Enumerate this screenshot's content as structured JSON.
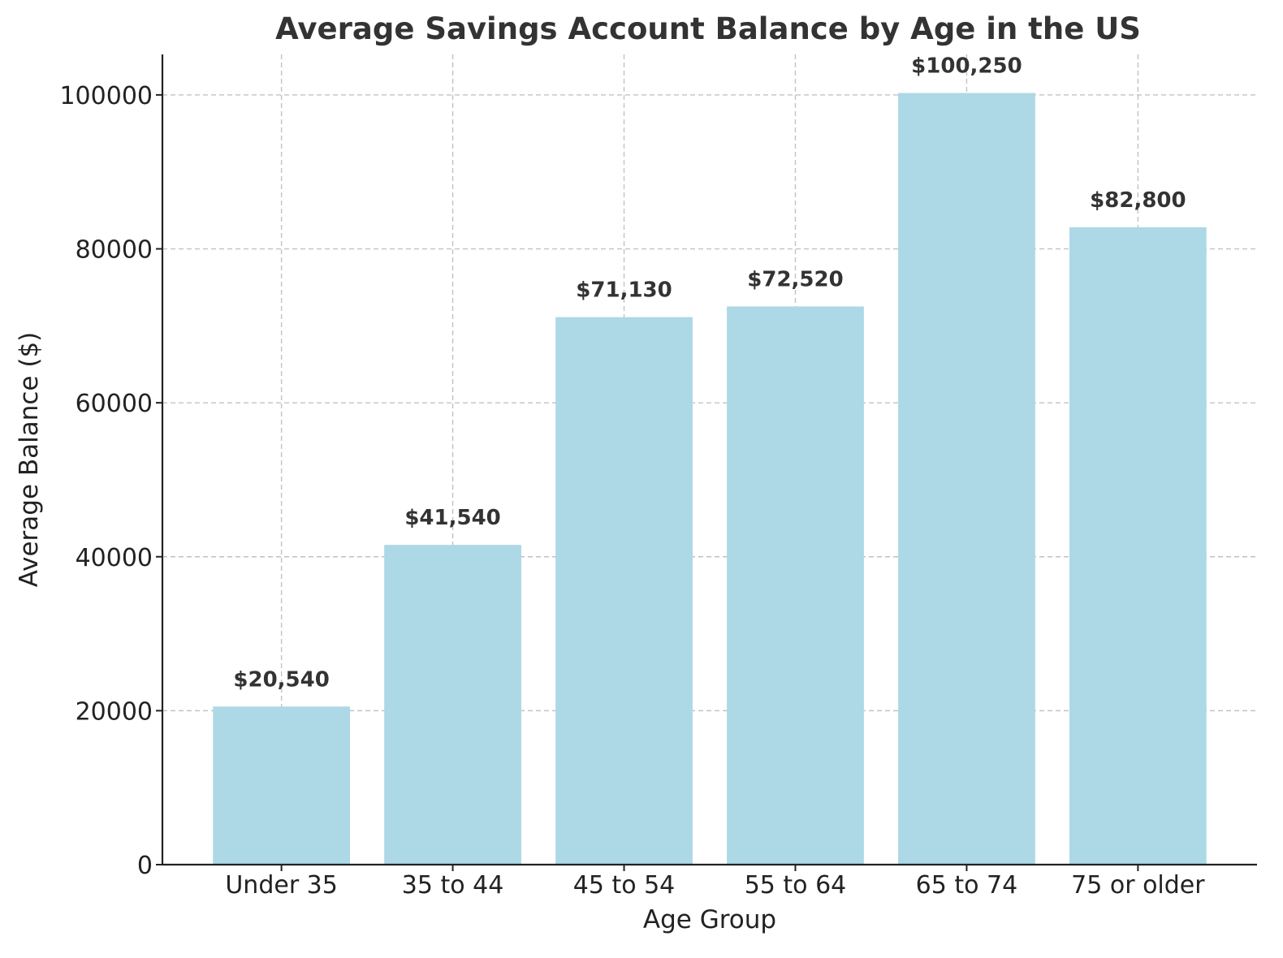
{
  "chart_data": {
    "type": "bar",
    "title": "Average Savings Account Balance by Age in the US",
    "xlabel": "Age Group",
    "ylabel": "Average Balance ($)",
    "categories": [
      "Under 35",
      "35 to 44",
      "45 to 54",
      "55 to 64",
      "65 to 74",
      "75 or older"
    ],
    "values": [
      20540,
      41540,
      71130,
      72520,
      100250,
      82800
    ],
    "value_labels": [
      "$20,540",
      "$41,540",
      "$71,130",
      "$72,520",
      "$100,250",
      "$82,800"
    ],
    "yticks": [
      0,
      20000,
      40000,
      60000,
      80000,
      100000
    ],
    "ytick_labels": [
      "0",
      "20000",
      "40000",
      "60000",
      "80000",
      "100000"
    ],
    "ylim": [
      0,
      105263
    ],
    "grid": true,
    "bar_color": "#add8e6",
    "text_color": "#333333"
  }
}
